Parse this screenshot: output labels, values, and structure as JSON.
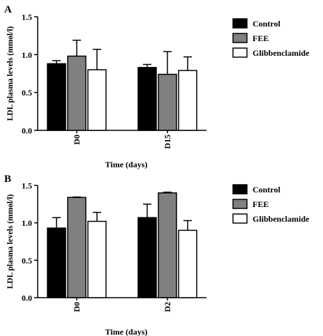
{
  "colors": {
    "control": "#000000",
    "fee": "#808080",
    "glibenclamide": "#ffffff",
    "axis": "#000000"
  },
  "chart_data": [
    {
      "type": "bar",
      "panel_label": "A",
      "xlabel": "Time (days)",
      "ylabel": "LDL plasma levels (mmol/l)",
      "ylim": [
        0,
        1.5
      ],
      "yticks": [
        "0.0",
        "0.5",
        "1.0",
        "1.5"
      ],
      "categories": [
        "D0",
        "D15"
      ],
      "legend_position": "right",
      "series": [
        {
          "name": "Control",
          "values": [
            0.88,
            0.83
          ],
          "errors": [
            0.04,
            0.04
          ]
        },
        {
          "name": "FEE",
          "values": [
            0.98,
            0.74
          ],
          "errors": [
            0.21,
            0.3
          ]
        },
        {
          "name": "Glibbenclamide",
          "values": [
            0.8,
            0.79
          ],
          "errors": [
            0.27,
            0.18
          ]
        }
      ]
    },
    {
      "type": "bar",
      "panel_label": "B",
      "xlabel": "Time (days)",
      "ylabel": "LDL plasma levels (mmol/l)",
      "ylim": [
        0,
        1.5
      ],
      "yticks": [
        "0.0",
        "0.5",
        "1.0",
        "1.5"
      ],
      "categories": [
        "D0",
        "D2"
      ],
      "legend_position": "right",
      "series": [
        {
          "name": "Control",
          "values": [
            0.93,
            1.07
          ],
          "errors": [
            0.14,
            0.18
          ]
        },
        {
          "name": "FEE",
          "values": [
            1.34,
            1.4
          ],
          "errors": [
            0.005,
            0.01
          ]
        },
        {
          "name": "Glibbenclamide",
          "values": [
            1.02,
            0.9
          ],
          "errors": [
            0.12,
            0.13
          ]
        }
      ]
    }
  ]
}
